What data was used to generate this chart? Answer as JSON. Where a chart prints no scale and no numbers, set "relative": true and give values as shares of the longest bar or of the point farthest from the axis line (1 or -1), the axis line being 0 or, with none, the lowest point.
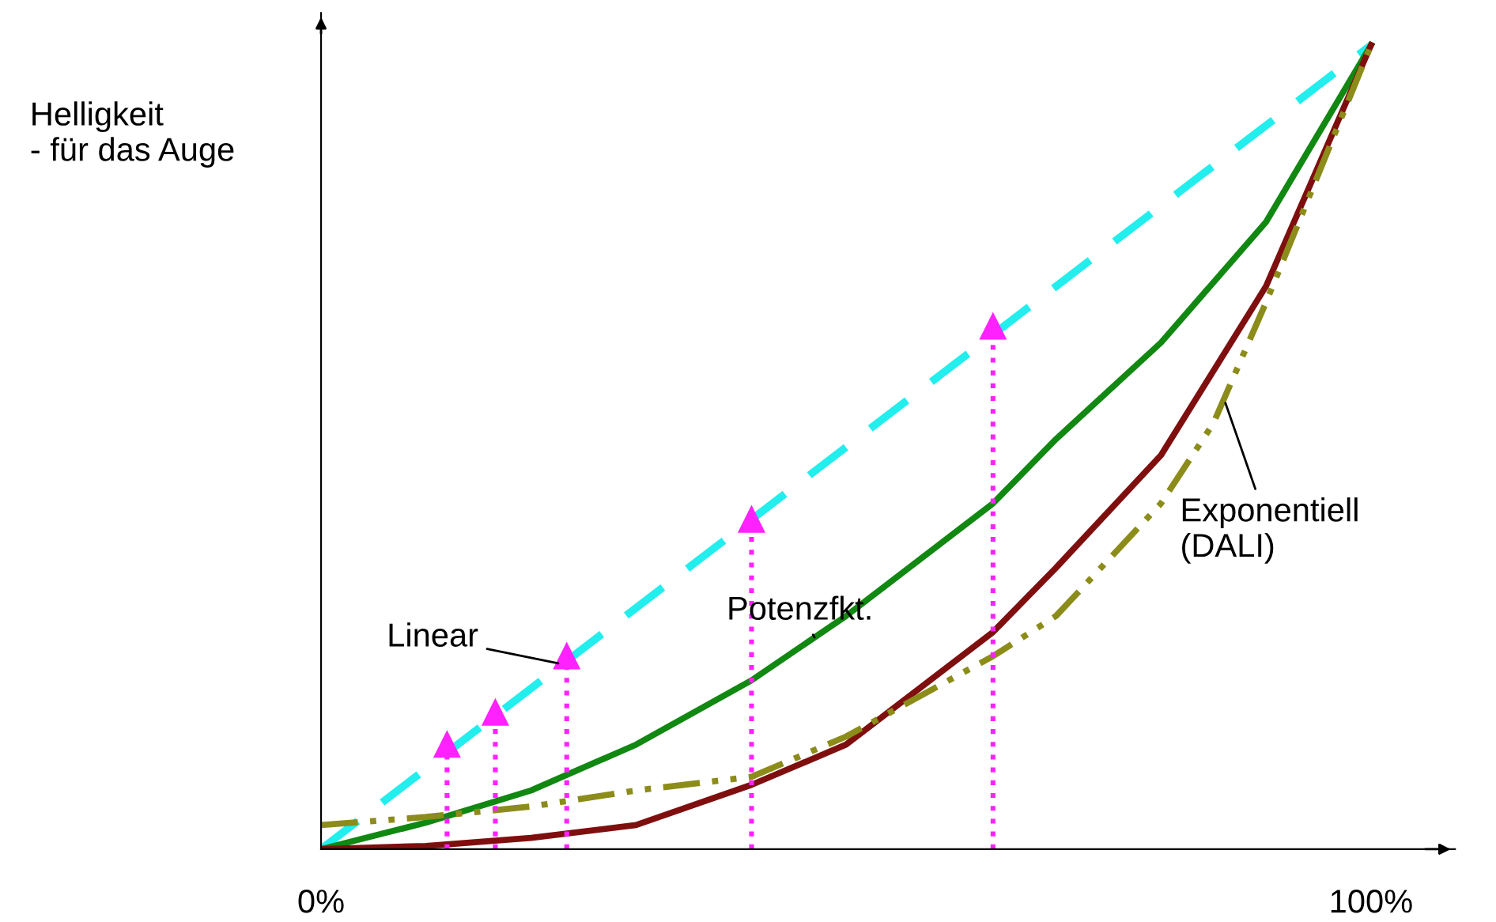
{
  "chart_data": {
    "type": "line",
    "relative": true,
    "ylabel": "Helligkeit\n- für das Auge",
    "xlim": [
      0,
      108
    ],
    "xticks": [
      {
        "value": 0,
        "label": "0%"
      },
      {
        "value": 100,
        "label": "100%"
      }
    ],
    "grid": false,
    "legend": false,
    "series": [
      {
        "name": "Linear",
        "color": "#22eeee",
        "line_style": "dashed",
        "x": [
          0,
          100
        ],
        "values": [
          0,
          1
        ]
      },
      {
        "name": "Potenzfkt.",
        "color": "#118811",
        "line_style": "solid",
        "x": [
          0,
          10,
          20,
          30,
          41,
          50,
          64,
          70,
          80,
          90,
          100
        ],
        "values": [
          0,
          0.033,
          0.073,
          0.13,
          0.21,
          0.29,
          0.43,
          0.51,
          0.63,
          0.78,
          1
        ]
      },
      {
        "color": "#7f0f0f",
        "line_style": "solid",
        "x": [
          0,
          10,
          20,
          30,
          41,
          50,
          64,
          70,
          80,
          90,
          100
        ],
        "values": [
          0,
          0.004,
          0.014,
          0.03,
          0.08,
          0.13,
          0.27,
          0.35,
          0.49,
          0.7,
          1
        ]
      },
      {
        "name": "Exponentiell\n(DALI)",
        "color": "#8c8c1a",
        "line_style": "dashdot",
        "x": [
          0,
          10,
          20,
          30,
          41,
          50,
          64,
          70,
          80,
          85,
          90,
          95,
          100
        ],
        "values": [
          0.03,
          0.04,
          0.053,
          0.073,
          0.09,
          0.14,
          0.24,
          0.29,
          0.43,
          0.53,
          0.68,
          0.84,
          1
        ]
      },
      {
        "type": "lollipop",
        "color": "#ff22ff",
        "line_style": "dotted",
        "marker": "triangle",
        "x": [
          12,
          16.6,
          23.4,
          41,
          64
        ],
        "values": [
          0.13,
          0.17,
          0.24,
          0.41,
          0.65
        ]
      }
    ]
  }
}
